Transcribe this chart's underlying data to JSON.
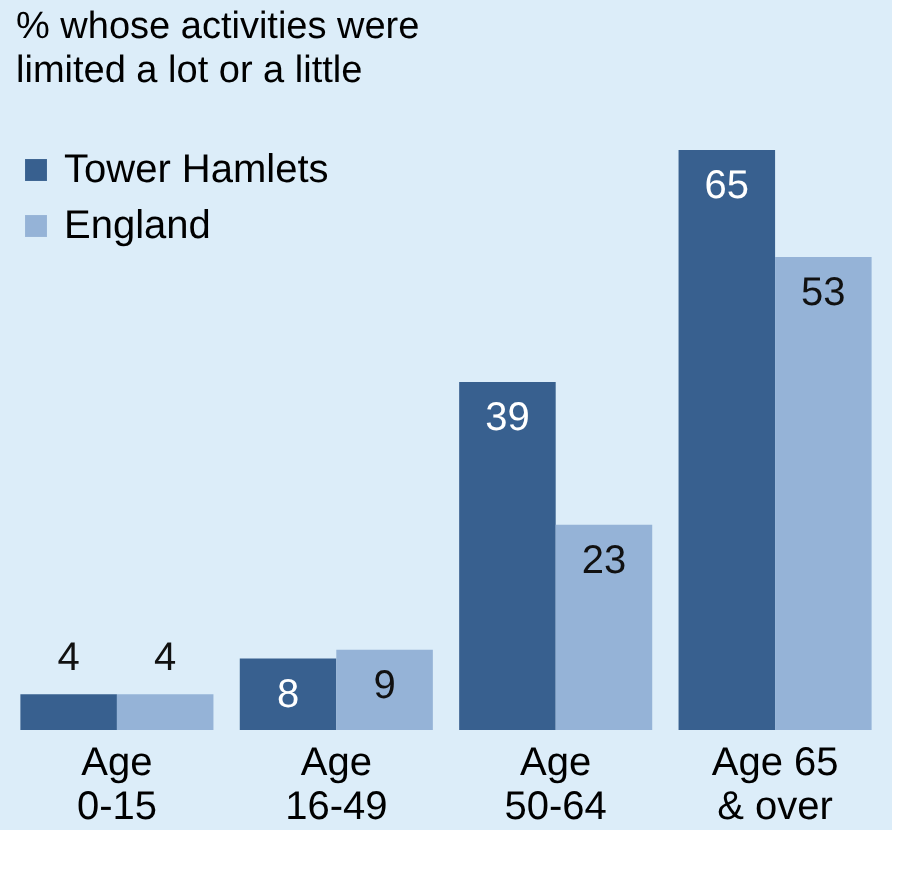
{
  "chart_data": {
    "type": "bar",
    "title": "%  whose activities were\nlimited a lot or a little",
    "categories": [
      "Age\n0-15",
      "Age\n16-49",
      "Age\n50-64",
      "Age 65\n& over"
    ],
    "series": [
      {
        "name": "Tower Hamlets",
        "color": "#38608f",
        "values": [
          4,
          8,
          39,
          65
        ]
      },
      {
        "name": "England",
        "color": "#95b3d7",
        "values": [
          4,
          9,
          23,
          53
        ]
      }
    ],
    "data_labels": true,
    "legend": "top left",
    "grid": false
  }
}
